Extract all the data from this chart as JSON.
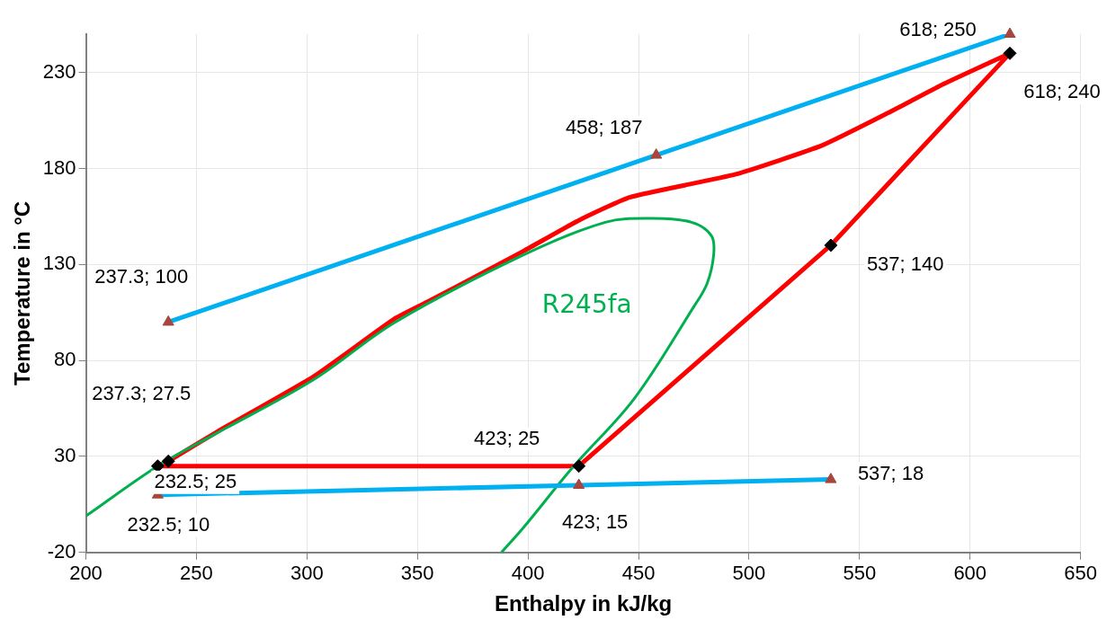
{
  "chart_data": {
    "type": "line",
    "xlabel": "Enthalpy in kJ/kg",
    "ylabel": "Temperature in °C",
    "xlim": [
      200,
      650
    ],
    "xticks": [
      200,
      250,
      300,
      350,
      400,
      450,
      500,
      550,
      600,
      650
    ],
    "ylim": [
      -20,
      250
    ],
    "yticks": [
      -20,
      30,
      80,
      130,
      180,
      230
    ],
    "grid": true,
    "legend": false,
    "series": [
      {
        "type": "line",
        "color": "#00b0f0",
        "x": [
          237.3,
          458,
          618
        ],
        "values": [
          100,
          187,
          250
        ],
        "marker": "none"
      },
      {
        "type": "line",
        "color": "#00b0f0",
        "x": [
          232.5,
          423,
          537
        ],
        "values": [
          10,
          15,
          18
        ],
        "marker": "none"
      },
      {
        "type": "line",
        "name": "R245fa",
        "color": "#00b050",
        "x": [
          200,
          232.5,
          259,
          303,
          340,
          398,
          435,
          456,
          474,
          483,
          484,
          481,
          475,
          448,
          420,
          398,
          388
        ],
        "values": [
          -1,
          25,
          42,
          70,
          100,
          135,
          152,
          154,
          152,
          145,
          135,
          120,
          108,
          60,
          24,
          -7,
          -20
        ],
        "marker": "none"
      },
      {
        "type": "line",
        "color": "#ff0000",
        "x": [
          237.3,
          259,
          303,
          340,
          357,
          398,
          423,
          446,
          494,
          533,
          563,
          588,
          618
        ],
        "values": [
          27.5,
          42.6,
          71.6,
          102,
          112,
          137,
          153,
          165,
          177,
          192,
          209,
          224,
          240
        ],
        "marker": "none"
      },
      {
        "type": "line",
        "color": "#ff0000",
        "x": [
          618,
          537,
          423,
          232.5,
          237.3
        ],
        "values": [
          240,
          140,
          25,
          25,
          27.5
        ],
        "marker": "none"
      },
      {
        "type": "scatter",
        "color": "#a5473f",
        "x": [
          618,
          458,
          237.3,
          537,
          423,
          232.5
        ],
        "values": [
          250,
          187,
          100,
          18,
          15,
          10
        ],
        "marker": "triangle"
      },
      {
        "type": "scatter",
        "color": "#000000",
        "x": [
          237.3,
          618,
          537,
          423,
          232.5
        ],
        "values": [
          27.5,
          240,
          140,
          25,
          25
        ],
        "marker": "diamond"
      }
    ],
    "annotations": [
      {
        "text": "618; 250",
        "x": 618,
        "y": 250
      },
      {
        "text": "458; 187",
        "x": 458,
        "y": 187
      },
      {
        "text": "618; 240",
        "x": 618,
        "y": 240
      },
      {
        "text": "537; 140",
        "x": 537,
        "y": 140
      },
      {
        "text": "237.3; 100",
        "x": 237.3,
        "y": 100
      },
      {
        "text": "237.3; 27.5",
        "x": 237.3,
        "y": 27.5
      },
      {
        "text": "232.5; 25",
        "x": 232.5,
        "y": 25
      },
      {
        "text": "232.5; 10",
        "x": 232.5,
        "y": 10
      },
      {
        "text": "423; 25",
        "x": 423,
        "y": 25
      },
      {
        "text": "423; 15",
        "x": 423,
        "y": 15
      },
      {
        "text": "537; 18",
        "x": 537,
        "y": 18
      }
    ]
  }
}
